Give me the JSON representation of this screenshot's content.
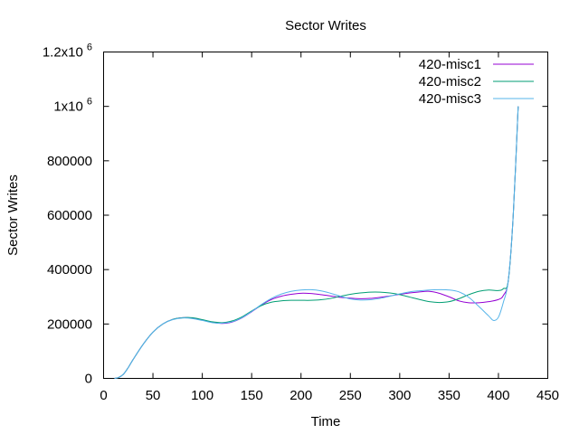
{
  "chart_data": {
    "type": "line",
    "title": "Sector Writes",
    "xlabel": "Time",
    "ylabel": "Sector Writes",
    "xlim": [
      0,
      450
    ],
    "ylim": [
      0,
      1200000
    ],
    "xticks": [
      0,
      50,
      100,
      150,
      200,
      250,
      300,
      350,
      400,
      450
    ],
    "yticks": [
      {
        "value": 0,
        "label": "0"
      },
      {
        "value": 200000,
        "label": "200000"
      },
      {
        "value": 400000,
        "label": "400000"
      },
      {
        "value": 600000,
        "label": "600000"
      },
      {
        "value": 800000,
        "label": "800000"
      },
      {
        "value": 1000000,
        "label": "1x10",
        "exp": "6"
      },
      {
        "value": 1200000,
        "label": "1.2x10",
        "exp": "6"
      }
    ],
    "grid": false,
    "legend_position": "top-right",
    "series": [
      {
        "name": "420-misc1",
        "color": "#9400d3",
        "x": [
          11,
          15,
          20,
          25,
          30,
          40,
          50,
          60,
          70,
          80,
          90,
          100,
          110,
          120,
          130,
          140,
          150,
          160,
          170,
          180,
          190,
          200,
          210,
          220,
          230,
          240,
          250,
          260,
          270,
          280,
          290,
          300,
          310,
          320,
          330,
          340,
          350,
          360,
          370,
          380,
          390,
          400,
          405,
          410,
          415,
          420
        ],
        "y": [
          0,
          3000,
          15000,
          40000,
          70000,
          125000,
          170000,
          200000,
          217000,
          223000,
          222000,
          215000,
          206000,
          202000,
          207000,
          222000,
          245000,
          270000,
          290000,
          302000,
          309000,
          313000,
          312000,
          308000,
          303000,
          298000,
          295000,
          293000,
          294000,
          298000,
          303000,
          309000,
          314000,
          318000,
          320000,
          313000,
          300000,
          285000,
          278000,
          278000,
          282000,
          290000,
          305000,
          360000,
          600000,
          1000000
        ]
      },
      {
        "name": "420-misc2",
        "color": "#009e73",
        "x": [
          11,
          15,
          20,
          25,
          30,
          40,
          50,
          60,
          70,
          80,
          90,
          100,
          110,
          120,
          130,
          140,
          150,
          160,
          170,
          180,
          190,
          200,
          210,
          220,
          230,
          240,
          250,
          260,
          270,
          280,
          290,
          300,
          310,
          320,
          330,
          340,
          350,
          360,
          370,
          380,
          390,
          400,
          405,
          410,
          415,
          420
        ],
        "y": [
          0,
          3000,
          15000,
          40000,
          70000,
          125000,
          170000,
          200000,
          217000,
          223000,
          223000,
          216000,
          208000,
          205000,
          211000,
          226000,
          248000,
          268000,
          280000,
          285000,
          287000,
          287000,
          287000,
          289000,
          294000,
          302000,
          309000,
          314000,
          317000,
          317000,
          314000,
          308000,
          299000,
          290000,
          282000,
          279000,
          282000,
          293000,
          308000,
          320000,
          325000,
          323000,
          330000,
          360000,
          600000,
          1000000
        ]
      },
      {
        "name": "420-misc3",
        "color": "#56b4e9",
        "x": [
          11,
          15,
          20,
          25,
          30,
          40,
          50,
          60,
          70,
          80,
          90,
          100,
          110,
          120,
          130,
          140,
          150,
          160,
          170,
          180,
          190,
          200,
          210,
          220,
          230,
          240,
          250,
          260,
          270,
          280,
          290,
          300,
          310,
          320,
          330,
          340,
          350,
          360,
          370,
          380,
          390,
          395,
          400,
          405,
          410,
          415,
          420
        ],
        "y": [
          0,
          3000,
          15000,
          40000,
          70000,
          125000,
          170000,
          200000,
          216000,
          222000,
          220000,
          213000,
          205000,
          203000,
          208000,
          223000,
          246000,
          272000,
          294000,
          310000,
          320000,
          325000,
          326000,
          322000,
          313000,
          302000,
          292000,
          288000,
          289000,
          294000,
          302000,
          311000,
          318000,
          322000,
          325000,
          326000,
          325000,
          318000,
          298000,
          265000,
          230000,
          213000,
          225000,
          280000,
          360000,
          600000,
          1000000
        ]
      }
    ]
  }
}
